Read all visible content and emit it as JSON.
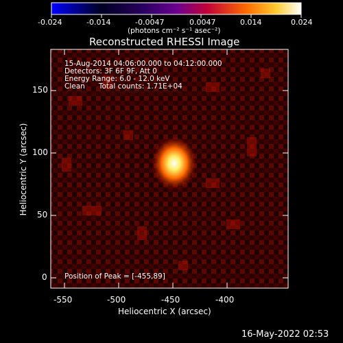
{
  "colorbar": {
    "tick_labels": [
      "-0.024",
      "-0.014",
      "-0.0047",
      "0.0047",
      "0.014",
      "0.024"
    ],
    "unit_label": "(photons cm⁻² s⁻¹ asec⁻²)",
    "colors": [
      "#0000ff",
      "#000000",
      "#6a0090",
      "#c0003a",
      "#ff6a00",
      "#ffffff"
    ]
  },
  "image": {
    "title": "Reconstructed RHESSI Image",
    "info_lines": [
      "15-Aug-2014 04:06:00.000 to 04:12:00.000",
      "Detectors: 3F 6F 9F, Att 0",
      "Energy Range: 6.0 - 12.0 keV",
      "Clean      Total counts: 1.71E+04"
    ],
    "peak_text": "Position of Peak = [-455,89]",
    "x_axis": {
      "label": "Heliocentric X (arcsec)",
      "ticks": [
        "-550",
        "-500",
        "-450",
        "-400"
      ]
    },
    "y_axis": {
      "label": "Heliocentric Y (arcsec)",
      "ticks": [
        "0",
        "50",
        "100",
        "150"
      ]
    }
  },
  "timestamp": "16-May-2022 02:53"
}
